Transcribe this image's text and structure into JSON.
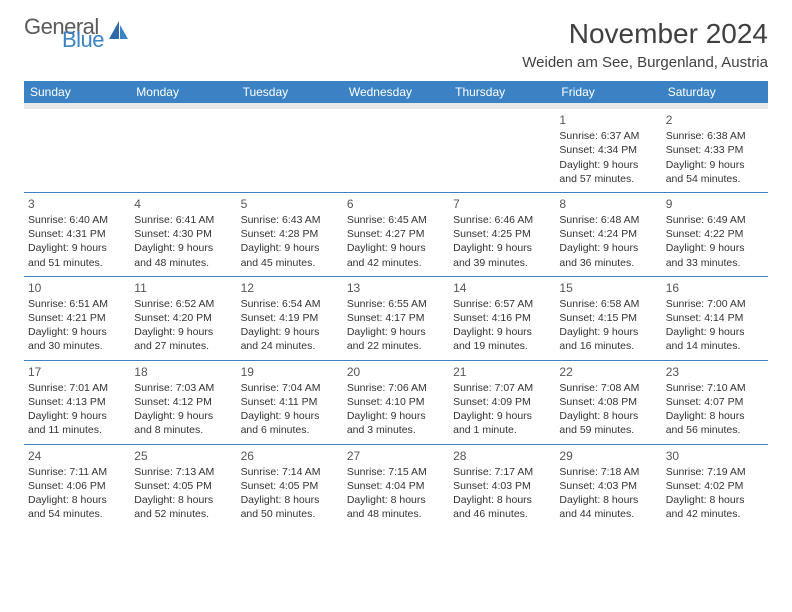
{
  "logo": {
    "general": "General",
    "blue": "Blue"
  },
  "title": "November 2024",
  "location": "Weiden am See, Burgenland, Austria",
  "colors": {
    "header_bg": "#3b82c4",
    "header_fg": "#ffffff",
    "border": "#3b82c4",
    "text": "#333333"
  },
  "week_starts_on": "Sunday",
  "day_headers": [
    "Sunday",
    "Monday",
    "Tuesday",
    "Wednesday",
    "Thursday",
    "Friday",
    "Saturday"
  ],
  "weeks": [
    [
      null,
      null,
      null,
      null,
      null,
      {
        "n": "1",
        "sunrise": "6:37 AM",
        "sunset": "4:34 PM",
        "daylight": "9 hours and 57 minutes."
      },
      {
        "n": "2",
        "sunrise": "6:38 AM",
        "sunset": "4:33 PM",
        "daylight": "9 hours and 54 minutes."
      }
    ],
    [
      {
        "n": "3",
        "sunrise": "6:40 AM",
        "sunset": "4:31 PM",
        "daylight": "9 hours and 51 minutes."
      },
      {
        "n": "4",
        "sunrise": "6:41 AM",
        "sunset": "4:30 PM",
        "daylight": "9 hours and 48 minutes."
      },
      {
        "n": "5",
        "sunrise": "6:43 AM",
        "sunset": "4:28 PM",
        "daylight": "9 hours and 45 minutes."
      },
      {
        "n": "6",
        "sunrise": "6:45 AM",
        "sunset": "4:27 PM",
        "daylight": "9 hours and 42 minutes."
      },
      {
        "n": "7",
        "sunrise": "6:46 AM",
        "sunset": "4:25 PM",
        "daylight": "9 hours and 39 minutes."
      },
      {
        "n": "8",
        "sunrise": "6:48 AM",
        "sunset": "4:24 PM",
        "daylight": "9 hours and 36 minutes."
      },
      {
        "n": "9",
        "sunrise": "6:49 AM",
        "sunset": "4:22 PM",
        "daylight": "9 hours and 33 minutes."
      }
    ],
    [
      {
        "n": "10",
        "sunrise": "6:51 AM",
        "sunset": "4:21 PM",
        "daylight": "9 hours and 30 minutes."
      },
      {
        "n": "11",
        "sunrise": "6:52 AM",
        "sunset": "4:20 PM",
        "daylight": "9 hours and 27 minutes."
      },
      {
        "n": "12",
        "sunrise": "6:54 AM",
        "sunset": "4:19 PM",
        "daylight": "9 hours and 24 minutes."
      },
      {
        "n": "13",
        "sunrise": "6:55 AM",
        "sunset": "4:17 PM",
        "daylight": "9 hours and 22 minutes."
      },
      {
        "n": "14",
        "sunrise": "6:57 AM",
        "sunset": "4:16 PM",
        "daylight": "9 hours and 19 minutes."
      },
      {
        "n": "15",
        "sunrise": "6:58 AM",
        "sunset": "4:15 PM",
        "daylight": "9 hours and 16 minutes."
      },
      {
        "n": "16",
        "sunrise": "7:00 AM",
        "sunset": "4:14 PM",
        "daylight": "9 hours and 14 minutes."
      }
    ],
    [
      {
        "n": "17",
        "sunrise": "7:01 AM",
        "sunset": "4:13 PM",
        "daylight": "9 hours and 11 minutes."
      },
      {
        "n": "18",
        "sunrise": "7:03 AM",
        "sunset": "4:12 PM",
        "daylight": "9 hours and 8 minutes."
      },
      {
        "n": "19",
        "sunrise": "7:04 AM",
        "sunset": "4:11 PM",
        "daylight": "9 hours and 6 minutes."
      },
      {
        "n": "20",
        "sunrise": "7:06 AM",
        "sunset": "4:10 PM",
        "daylight": "9 hours and 3 minutes."
      },
      {
        "n": "21",
        "sunrise": "7:07 AM",
        "sunset": "4:09 PM",
        "daylight": "9 hours and 1 minute."
      },
      {
        "n": "22",
        "sunrise": "7:08 AM",
        "sunset": "4:08 PM",
        "daylight": "8 hours and 59 minutes."
      },
      {
        "n": "23",
        "sunrise": "7:10 AM",
        "sunset": "4:07 PM",
        "daylight": "8 hours and 56 minutes."
      }
    ],
    [
      {
        "n": "24",
        "sunrise": "7:11 AM",
        "sunset": "4:06 PM",
        "daylight": "8 hours and 54 minutes."
      },
      {
        "n": "25",
        "sunrise": "7:13 AM",
        "sunset": "4:05 PM",
        "daylight": "8 hours and 52 minutes."
      },
      {
        "n": "26",
        "sunrise": "7:14 AM",
        "sunset": "4:05 PM",
        "daylight": "8 hours and 50 minutes."
      },
      {
        "n": "27",
        "sunrise": "7:15 AM",
        "sunset": "4:04 PM",
        "daylight": "8 hours and 48 minutes."
      },
      {
        "n": "28",
        "sunrise": "7:17 AM",
        "sunset": "4:03 PM",
        "daylight": "8 hours and 46 minutes."
      },
      {
        "n": "29",
        "sunrise": "7:18 AM",
        "sunset": "4:03 PM",
        "daylight": "8 hours and 44 minutes."
      },
      {
        "n": "30",
        "sunrise": "7:19 AM",
        "sunset": "4:02 PM",
        "daylight": "8 hours and 42 minutes."
      }
    ]
  ],
  "labels": {
    "sunrise": "Sunrise:",
    "sunset": "Sunset:",
    "daylight": "Daylight:"
  }
}
